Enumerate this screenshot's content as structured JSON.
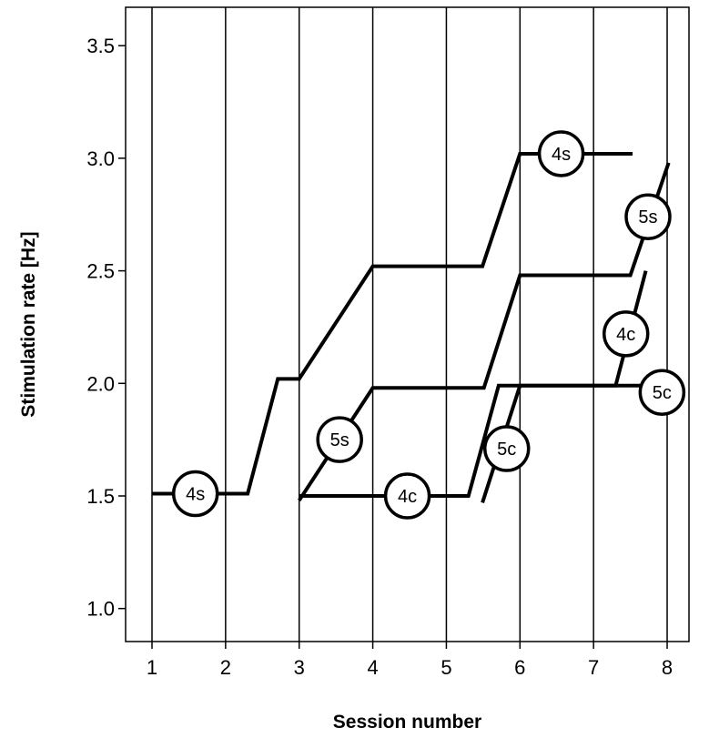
{
  "chart_data": {
    "type": "line",
    "title": "",
    "xlabel": "Session number",
    "ylabel": "Stimulation rate [Hz]",
    "xlim": [
      0.65,
      8.3
    ],
    "ylim": [
      0.85,
      3.67
    ],
    "xticks": [
      1,
      2,
      3,
      4,
      5,
      6,
      7,
      8
    ],
    "yticks": [
      1.0,
      1.5,
      2.0,
      2.5,
      3.0,
      3.5
    ],
    "ytick_labels": [
      "1.0",
      "1.5",
      "2.0",
      "2.5",
      "3.0",
      "3.5"
    ],
    "xtick_labels": [
      "1",
      "2",
      "3",
      "4",
      "5",
      "6",
      "7",
      "8"
    ],
    "grid": "vertical lines at each session",
    "legend": "none (inline circled labels)",
    "line_color": "#000000",
    "series": [
      {
        "name": "4s",
        "points": [
          [
            1.0,
            1.51
          ],
          [
            2.3,
            1.51
          ],
          [
            2.71,
            2.02
          ],
          [
            3.0,
            2.02
          ],
          [
            4.0,
            2.52
          ],
          [
            5.49,
            2.52
          ],
          [
            6.0,
            3.02
          ],
          [
            7.53,
            3.02
          ]
        ],
        "labels": [
          [
            1.59,
            1.51
          ],
          [
            6.56,
            3.02
          ]
        ]
      },
      {
        "name": "5s",
        "points": [
          [
            3.0,
            1.48
          ],
          [
            4.0,
            1.98
          ],
          [
            5.51,
            1.98
          ],
          [
            6.0,
            2.48
          ],
          [
            7.5,
            2.48
          ],
          [
            8.02,
            2.98
          ]
        ],
        "labels": [
          [
            3.55,
            1.75
          ],
          [
            7.74,
            2.74
          ]
        ]
      },
      {
        "name": "4c",
        "points": [
          [
            3.0,
            1.5
          ],
          [
            5.3,
            1.5
          ],
          [
            5.71,
            1.99
          ],
          [
            7.3,
            1.99
          ],
          [
            7.71,
            2.5
          ]
        ],
        "labels": [
          [
            4.47,
            1.5
          ],
          [
            7.44,
            2.22
          ]
        ]
      },
      {
        "name": "5c",
        "points": [
          [
            5.49,
            1.47
          ],
          [
            6.0,
            1.99
          ],
          [
            7.93,
            1.99
          ]
        ],
        "labels": [
          [
            5.82,
            1.71
          ],
          [
            7.93,
            1.96
          ]
        ]
      }
    ]
  }
}
